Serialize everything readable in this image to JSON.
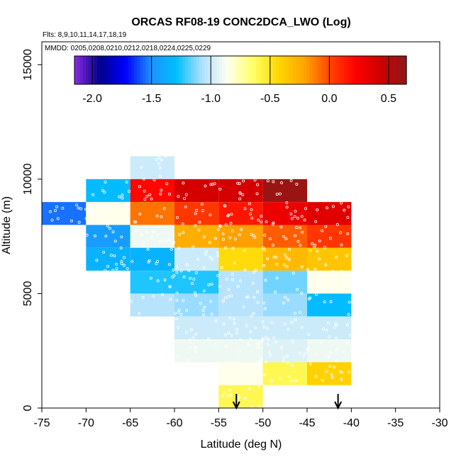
{
  "chart_data": {
    "type": "heatmap",
    "title": "ORCAS RF08-19 CONC2DCA_LWO (Log)",
    "flights_label": "Flts: 8,9,10,11,14,17,18,19",
    "dates_label": "MMDD: 0205,0208,0210,0212,0218,0224,0225,0229",
    "xlabel": "Latitude (deg N)",
    "ylabel": "Altitude (m)",
    "xlim": [
      -75,
      -30
    ],
    "ylim": [
      0,
      16000
    ],
    "x_ticks": [
      -75,
      -70,
      -65,
      -60,
      -55,
      -50,
      -45,
      -40,
      -35,
      -30
    ],
    "x_tick_labels": [
      "-75",
      "-70",
      "-65",
      "-60",
      "-55",
      "-50",
      "-45",
      "-40",
      "-35",
      "-30"
    ],
    "y_ticks": [
      0,
      5000,
      10000,
      15000
    ],
    "y_tick_labels": [
      "0",
      "5000",
      "10000",
      "15000"
    ],
    "bin_width_deg": 5,
    "bin_height_m": 1000,
    "colorbar": {
      "min": -2.15,
      "max": 0.65,
      "ticks": [
        -2.0,
        -1.5,
        -1.0,
        -0.5,
        0.0,
        0.5
      ],
      "tick_labels": [
        "-2.0",
        "-1.5",
        "-1.0",
        "-0.5",
        "0.0",
        "0.5"
      ],
      "colors": [
        "#8a2be2",
        "#00008b",
        "#0000ff",
        "#1e90ff",
        "#00bfff",
        "#b0e0ff",
        "#fffff0",
        "#ffff66",
        "#ffd700",
        "#ffa500",
        "#ff4500",
        "#ff0000",
        "#cc0000",
        "#8b1a1a"
      ]
    },
    "cells": [
      {
        "lat": -75,
        "alt": 8000,
        "value": -1.55
      },
      {
        "lat": -70,
        "alt": 9000,
        "value": -1.3
      },
      {
        "lat": -70,
        "alt": 8000,
        "value": -0.85
      },
      {
        "lat": -70,
        "alt": 7000,
        "value": -1.45
      },
      {
        "lat": -70,
        "alt": 6000,
        "value": -1.35
      },
      {
        "lat": -65,
        "alt": 10000,
        "value": -1.0
      },
      {
        "lat": -65,
        "alt": 9000,
        "value": 0.2
      },
      {
        "lat": -65,
        "alt": 8000,
        "value": -0.1
      },
      {
        "lat": -65,
        "alt": 7000,
        "value": -0.9
      },
      {
        "lat": -65,
        "alt": 6000,
        "value": -1.35
      },
      {
        "lat": -65,
        "alt": 5000,
        "value": -1.25
      },
      {
        "lat": -65,
        "alt": 4000,
        "value": -1.05
      },
      {
        "lat": -60,
        "alt": 9000,
        "value": 0.4
      },
      {
        "lat": -60,
        "alt": 8000,
        "value": 0.05
      },
      {
        "lat": -60,
        "alt": 7000,
        "value": -0.25
      },
      {
        "lat": -60,
        "alt": 6000,
        "value": -1.0
      },
      {
        "lat": -60,
        "alt": 5000,
        "value": -1.25
      },
      {
        "lat": -60,
        "alt": 4000,
        "value": -1.1
      },
      {
        "lat": -60,
        "alt": 3000,
        "value": -1.0
      },
      {
        "lat": -60,
        "alt": 2000,
        "value": -0.9
      },
      {
        "lat": -55,
        "alt": 9000,
        "value": 0.4
      },
      {
        "lat": -55,
        "alt": 8000,
        "value": 0.15
      },
      {
        "lat": -55,
        "alt": 7000,
        "value": -0.2
      },
      {
        "lat": -55,
        "alt": 6000,
        "value": -0.45
      },
      {
        "lat": -55,
        "alt": 5000,
        "value": -1.05
      },
      {
        "lat": -55,
        "alt": 4000,
        "value": -1.05
      },
      {
        "lat": -55,
        "alt": 3000,
        "value": -1.0
      },
      {
        "lat": -55,
        "alt": 2000,
        "value": -0.9
      },
      {
        "lat": -55,
        "alt": 1000,
        "value": -0.85
      },
      {
        "lat": -55,
        "alt": 0,
        "value": -0.6
      },
      {
        "lat": -50,
        "alt": 9000,
        "value": 0.6
      },
      {
        "lat": -50,
        "alt": 8000,
        "value": 0.3
      },
      {
        "lat": -50,
        "alt": 7000,
        "value": -0.05
      },
      {
        "lat": -50,
        "alt": 6000,
        "value": -0.3
      },
      {
        "lat": -50,
        "alt": 5000,
        "value": -1.15
      },
      {
        "lat": -50,
        "alt": 4000,
        "value": -1.1
      },
      {
        "lat": -50,
        "alt": 3000,
        "value": -1.0
      },
      {
        "lat": -50,
        "alt": 2000,
        "value": -0.95
      },
      {
        "lat": -50,
        "alt": 1000,
        "value": -0.6
      },
      {
        "lat": -45,
        "alt": 8000,
        "value": 0.35
      },
      {
        "lat": -45,
        "alt": 7000,
        "value": 0.05
      },
      {
        "lat": -45,
        "alt": 6000,
        "value": -0.35
      },
      {
        "lat": -45,
        "alt": 5000,
        "value": -0.85
      },
      {
        "lat": -45,
        "alt": 4000,
        "value": -1.3
      },
      {
        "lat": -45,
        "alt": 3000,
        "value": -1.0
      },
      {
        "lat": -45,
        "alt": 2000,
        "value": -0.9
      },
      {
        "lat": -45,
        "alt": 1000,
        "value": -0.4
      }
    ],
    "markers": [
      {
        "type": "arrow-down",
        "lat": -53
      },
      {
        "type": "arrow-down",
        "lat": -41.5
      }
    ]
  }
}
